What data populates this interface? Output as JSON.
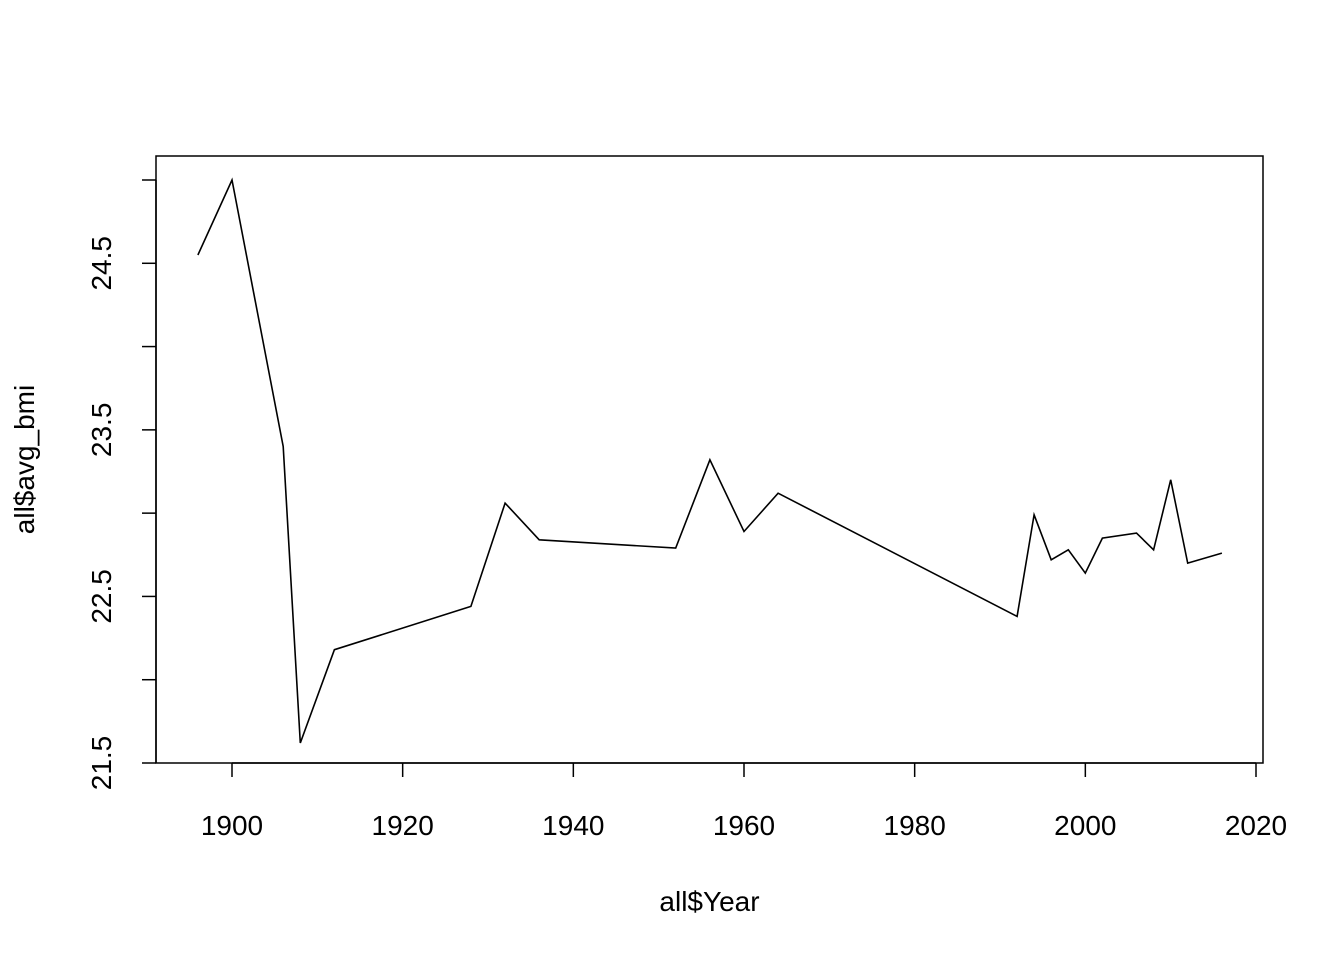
{
  "chart_data": {
    "type": "line",
    "title": "",
    "xlabel": "all$Year",
    "ylabel": "all$avg_bmi",
    "xlim": [
      1891.2,
      1720.8
    ],
    "ylim": [
      21.5,
      25.15
    ],
    "x_ticks": [
      1900,
      1920,
      1940,
      1960,
      1980,
      2000,
      2020
    ],
    "y_ticks": [
      21.5,
      22.0,
      22.5,
      23.0,
      23.5,
      24.0,
      24.5,
      25.0
    ],
    "y_tick_labels": [
      "21.5",
      "",
      "22.5",
      "",
      "23.5",
      "",
      "24.5",
      ""
    ],
    "grid": false,
    "series": [
      {
        "x": [
          1896,
          1900,
          1906,
          1908,
          1912,
          1928,
          1932,
          1936,
          1952,
          1956,
          1960,
          1964,
          1992,
          1994,
          1996,
          1998,
          2000,
          2002,
          2006,
          2008,
          2010,
          2012,
          2016
        ],
        "y": [
          24.55,
          25.0,
          23.4,
          21.62,
          22.18,
          22.44,
          23.06,
          22.84,
          22.79,
          23.32,
          22.89,
          23.12,
          22.38,
          22.99,
          22.72,
          22.78,
          22.64,
          22.85,
          22.88,
          22.78,
          23.2,
          22.7,
          22.76
        ]
      }
    ]
  }
}
